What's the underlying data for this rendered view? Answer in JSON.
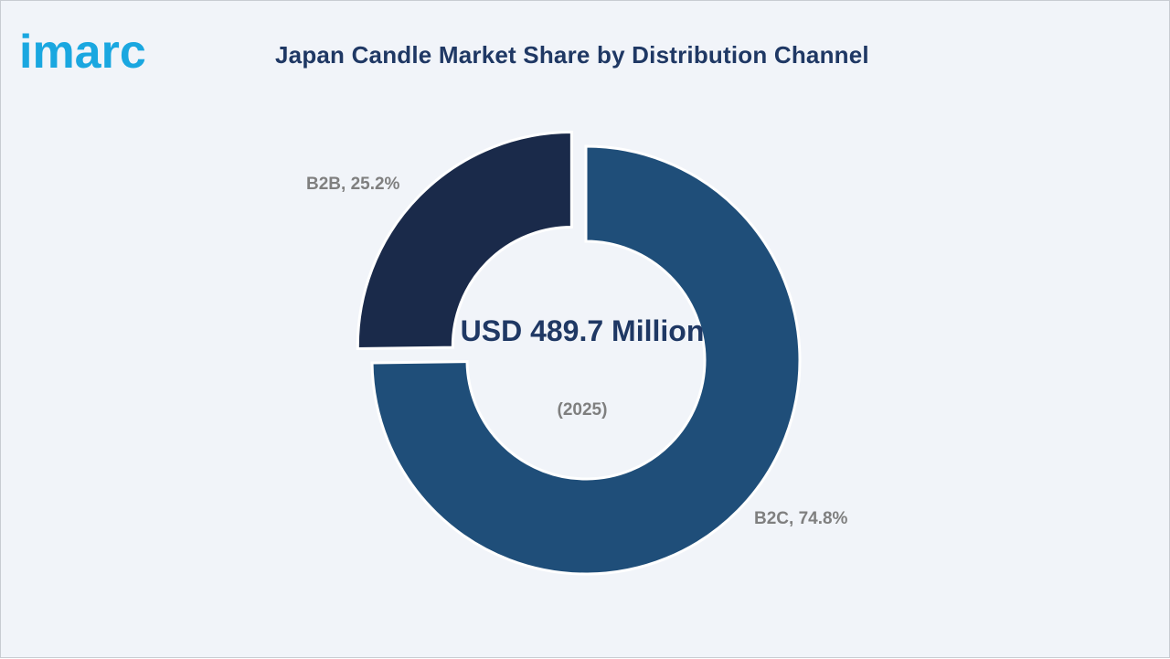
{
  "brand": {
    "logo_text": "imarc",
    "logo_color": "#1aa7e0"
  },
  "colors": {
    "background": "#f1f4f9",
    "title": "#1f3864",
    "label_gray": "#7f7f7f",
    "b2c_slice": "#1f4e79",
    "b2b_slice": "#1a2a4a"
  },
  "chart_data": {
    "type": "pie",
    "style": "donut",
    "title": "Japan Candle Market Share by Distribution Channel",
    "slices": [
      {
        "label": "B2B",
        "value": 25.2,
        "unit": "%",
        "display": "B2B, 25.2%",
        "color": "#1a2a4a",
        "exploded": true
      },
      {
        "label": "B2C",
        "value": 74.8,
        "unit": "%",
        "display": "B2C, 74.8%",
        "color": "#1f4e79",
        "exploded": false
      }
    ],
    "center_text": {
      "total": "USD 489.7 Million",
      "year": "(2025)"
    },
    "legend": "none"
  }
}
